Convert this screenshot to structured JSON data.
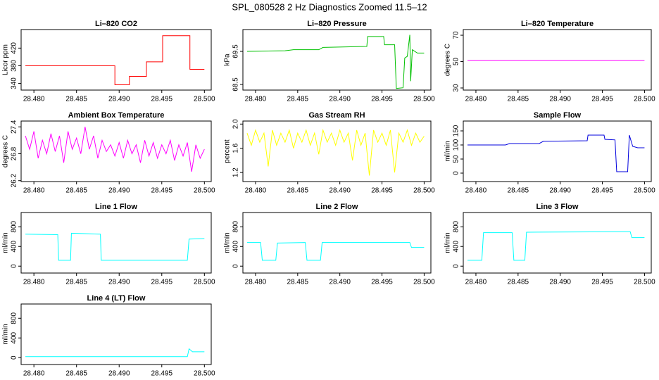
{
  "title": "SPL_080528  2 Hz Diagnostics Zoomed 11.5–12",
  "chart_data": [
    {
      "type": "line",
      "title": "Li–820 CO2",
      "y_label": "Licor ppm",
      "color": "#ff0000",
      "x": [
        28.479,
        28.4895,
        28.4895,
        28.4912,
        28.4912,
        28.4932,
        28.4932,
        28.4951,
        28.4951,
        28.4983,
        28.4983,
        28.5
      ],
      "values": [
        380,
        380,
        337,
        337,
        356,
        356,
        389,
        389,
        448,
        448,
        372,
        372
      ],
      "xlim": [
        28.4785,
        28.5008
      ],
      "xticks": [
        {
          "value": 28.48,
          "label": "28.480"
        },
        {
          "value": 28.485,
          "label": "28.485"
        },
        {
          "value": 28.49,
          "label": "28.490"
        },
        {
          "value": 28.495,
          "label": "28.495"
        },
        {
          "value": 28.5,
          "label": "28.500"
        }
      ],
      "ylim": [
        325,
        462
      ],
      "yticks": [
        340,
        380,
        420
      ]
    },
    {
      "type": "line",
      "title": "Li–820 Pressure",
      "y_label": "kPa",
      "color": "#00c000",
      "x": [
        28.479,
        28.4835,
        28.4845,
        28.4875,
        28.488,
        28.4932,
        28.4933,
        28.4952,
        28.4953,
        28.4965,
        28.4967,
        28.4975,
        28.4977,
        28.498,
        28.4983,
        28.4984,
        28.4986,
        28.4992,
        28.5
      ],
      "values": [
        69.5,
        69.52,
        69.55,
        69.55,
        69.62,
        69.65,
        69.95,
        69.95,
        69.7,
        69.7,
        68.38,
        68.4,
        69.3,
        69.35,
        70.0,
        68.6,
        69.55,
        69.45,
        69.45
      ],
      "xlim": [
        28.4785,
        28.5008
      ],
      "xticks": [
        {
          "value": 28.48,
          "label": "28.480"
        },
        {
          "value": 28.485,
          "label": "28.485"
        },
        {
          "value": 28.49,
          "label": "28.490"
        },
        {
          "value": 28.495,
          "label": "28.495"
        },
        {
          "value": 28.5,
          "label": "28.500"
        }
      ],
      "ylim": [
        68.33,
        70.16
      ],
      "yticks": [
        68.5,
        69.5
      ]
    },
    {
      "type": "line",
      "title": "Li–820 Temperature",
      "y_label": "degrees C",
      "color": "#ff00ff",
      "x": [
        28.479,
        28.5
      ],
      "values": [
        51,
        51
      ],
      "xlim": [
        28.4785,
        28.5008
      ],
      "xticks": [
        {
          "value": 28.48,
          "label": "28.480"
        },
        {
          "value": 28.485,
          "label": "28.485"
        },
        {
          "value": 28.49,
          "label": "28.490"
        },
        {
          "value": 28.495,
          "label": "28.495"
        },
        {
          "value": 28.5,
          "label": "28.500"
        }
      ],
      "ylim": [
        28.4,
        74.3
      ],
      "yticks": [
        30,
        50,
        70
      ]
    },
    {
      "type": "line",
      "title": "Ambient Box Temperature",
      "y_label": "degrees C",
      "color": "#ff00ff",
      "x": [
        28.479,
        28.4795,
        28.48,
        28.4805,
        28.481,
        28.4815,
        28.482,
        28.4825,
        28.483,
        28.4835,
        28.484,
        28.4845,
        28.485,
        28.4855,
        28.486,
        28.4865,
        28.487,
        28.4875,
        28.488,
        28.4885,
        28.489,
        28.4895,
        28.49,
        28.4905,
        28.491,
        28.4915,
        28.492,
        28.4925,
        28.493,
        28.4935,
        28.494,
        28.4945,
        28.495,
        28.4955,
        28.496,
        28.4965,
        28.497,
        28.4975,
        28.498,
        28.4985,
        28.499,
        28.4995,
        28.5
      ],
      "values": [
        27.2,
        26.9,
        27.3,
        26.7,
        27.1,
        26.8,
        27.25,
        26.85,
        27.2,
        26.6,
        27.3,
        26.9,
        27.15,
        26.8,
        27.4,
        26.9,
        27.2,
        26.7,
        27.1,
        26.85,
        27.0,
        26.75,
        27.05,
        26.7,
        27.1,
        26.8,
        27.0,
        26.6,
        27.1,
        26.75,
        27.05,
        26.7,
        27.0,
        26.8,
        27.1,
        26.65,
        27.0,
        26.75,
        27.05,
        26.4,
        27.0,
        26.7,
        26.9
      ],
      "xlim": [
        28.4785,
        28.5008
      ],
      "xticks": [
        {
          "value": 28.48,
          "label": "28.480"
        },
        {
          "value": 28.485,
          "label": "28.485"
        },
        {
          "value": 28.49,
          "label": "28.490"
        },
        {
          "value": 28.495,
          "label": "28.495"
        },
        {
          "value": 28.5,
          "label": "28.500"
        }
      ],
      "ylim": [
        26.18,
        27.53
      ],
      "yticks": [
        26.2,
        26.8,
        27.4
      ]
    },
    {
      "type": "line",
      "title": "Gas Stream RH",
      "y_label": "percent",
      "color": "#ffff00",
      "x": [
        28.479,
        28.4795,
        28.48,
        28.4805,
        28.481,
        28.4815,
        28.482,
        28.4825,
        28.483,
        28.4835,
        28.484,
        28.4845,
        28.485,
        28.4855,
        28.486,
        28.4865,
        28.487,
        28.4875,
        28.488,
        28.4885,
        28.489,
        28.4895,
        28.49,
        28.4905,
        28.491,
        28.4915,
        28.492,
        28.4925,
        28.493,
        28.4935,
        28.494,
        28.4945,
        28.495,
        28.4955,
        28.496,
        28.4965,
        28.497,
        28.4975,
        28.498,
        28.4985,
        28.499,
        28.4995,
        28.5
      ],
      "values": [
        1.85,
        1.65,
        1.9,
        1.7,
        1.85,
        1.3,
        1.9,
        1.65,
        1.85,
        1.7,
        1.9,
        1.6,
        1.85,
        1.7,
        1.9,
        1.65,
        1.85,
        1.5,
        1.9,
        1.7,
        1.85,
        1.65,
        1.9,
        1.7,
        1.85,
        1.4,
        1.9,
        1.65,
        1.85,
        1.15,
        1.9,
        1.7,
        1.85,
        1.65,
        1.9,
        1.2,
        1.85,
        1.7,
        1.9,
        1.65,
        1.85,
        1.7,
        1.8
      ],
      "xlim": [
        28.4785,
        28.5008
      ],
      "xticks": [
        {
          "value": 28.48,
          "label": "28.480"
        },
        {
          "value": 28.485,
          "label": "28.485"
        },
        {
          "value": 28.49,
          "label": "28.490"
        },
        {
          "value": 28.495,
          "label": "28.495"
        },
        {
          "value": 28.5,
          "label": "28.500"
        }
      ],
      "ylim": [
        1.05,
        2.05
      ],
      "yticks": [
        1.2,
        1.6,
        {
          "value": 2,
          "label": "2.0"
        }
      ]
    },
    {
      "type": "line",
      "title": "Sample Flow",
      "y_label": "ml/min",
      "color": "#0000dd",
      "x": [
        28.479,
        28.4835,
        28.484,
        28.4875,
        28.488,
        28.4932,
        28.4933,
        28.4952,
        28.4953,
        28.4965,
        28.4967,
        28.498,
        28.4982,
        28.4986,
        28.4992,
        28.5
      ],
      "values": [
        100,
        100,
        105,
        105,
        113,
        115,
        135,
        135,
        120,
        118,
        5,
        5,
        135,
        95,
        90,
        90
      ],
      "xlim": [
        28.4785,
        28.5008
      ],
      "xticks": [
        {
          "value": 28.48,
          "label": "28.480"
        },
        {
          "value": 28.485,
          "label": "28.485"
        },
        {
          "value": 28.49,
          "label": "28.490"
        },
        {
          "value": 28.495,
          "label": "28.495"
        },
        {
          "value": 28.5,
          "label": "28.500"
        }
      ],
      "ylim": [
        -30,
        185
      ],
      "yticks": [
        0,
        50,
        100,
        150
      ]
    },
    {
      "type": "line",
      "title": "Line 1 Flow",
      "y_label": "ml/min",
      "color": "#00ffff",
      "x": [
        28.479,
        28.4828,
        28.4829,
        28.4843,
        28.4844,
        28.4878,
        28.4879,
        28.498,
        28.4982,
        28.5
      ],
      "values": [
        650,
        640,
        120,
        120,
        670,
        650,
        120,
        120,
        550,
        560
      ],
      "xlim": [
        28.4785,
        28.5008
      ],
      "xticks": [
        {
          "value": 28.48,
          "label": "28.480"
        },
        {
          "value": 28.485,
          "label": "28.485"
        },
        {
          "value": 28.49,
          "label": "28.490"
        },
        {
          "value": 28.495,
          "label": "28.495"
        },
        {
          "value": 28.5,
          "label": "28.500"
        }
      ],
      "ylim": [
        -140,
        1090
      ],
      "yticks": [
        0,
        400,
        800
      ]
    },
    {
      "type": "line",
      "title": "Line 2 Flow",
      "y_label": "ml/min",
      "color": "#00ffff",
      "x": [
        28.479,
        28.4806,
        28.4808,
        28.4824,
        28.4826,
        28.4859,
        28.4861,
        28.4877,
        28.4879,
        28.4983,
        28.4985,
        28.5
      ],
      "values": [
        480,
        480,
        120,
        120,
        470,
        480,
        120,
        120,
        480,
        480,
        380,
        380
      ],
      "xlim": [
        28.4785,
        28.5008
      ],
      "xticks": [
        {
          "value": 28.48,
          "label": "28.480"
        },
        {
          "value": 28.485,
          "label": "28.485"
        },
        {
          "value": 28.49,
          "label": "28.490"
        },
        {
          "value": 28.495,
          "label": "28.495"
        },
        {
          "value": 28.5,
          "label": "28.500"
        }
      ],
      "ylim": [
        -140,
        1090
      ],
      "yticks": [
        0,
        400,
        800
      ]
    },
    {
      "type": "line",
      "title": "Line 3 Flow",
      "y_label": "ml/min",
      "color": "#00ffff",
      "x": [
        28.479,
        28.4807,
        28.4809,
        28.4843,
        28.4845,
        28.4858,
        28.486,
        28.4983,
        28.4985,
        28.5
      ],
      "values": [
        120,
        120,
        680,
        680,
        120,
        120,
        690,
        700,
        580,
        580
      ],
      "xlim": [
        28.4785,
        28.5008
      ],
      "xticks": [
        {
          "value": 28.48,
          "label": "28.480"
        },
        {
          "value": 28.485,
          "label": "28.485"
        },
        {
          "value": 28.49,
          "label": "28.490"
        },
        {
          "value": 28.495,
          "label": "28.495"
        },
        {
          "value": 28.5,
          "label": "28.500"
        }
      ],
      "ylim": [
        -140,
        1090
      ],
      "yticks": [
        0,
        400,
        800
      ]
    },
    {
      "type": "line",
      "title": "Line 4 (LT) Flow",
      "y_label": "ml/min",
      "color": "#00ffff",
      "x": [
        28.479,
        28.498,
        28.4982,
        28.4986,
        28.5
      ],
      "values": [
        20,
        20,
        180,
        120,
        120
      ],
      "xlim": [
        28.4785,
        28.5008
      ],
      "xticks": [
        {
          "value": 28.48,
          "label": "28.480"
        },
        {
          "value": 28.485,
          "label": "28.485"
        },
        {
          "value": 28.49,
          "label": "28.490"
        },
        {
          "value": 28.495,
          "label": "28.495"
        },
        {
          "value": 28.5,
          "label": "28.500"
        }
      ],
      "ylim": [
        -140,
        1090
      ],
      "yticks": [
        0,
        400,
        800
      ]
    }
  ]
}
